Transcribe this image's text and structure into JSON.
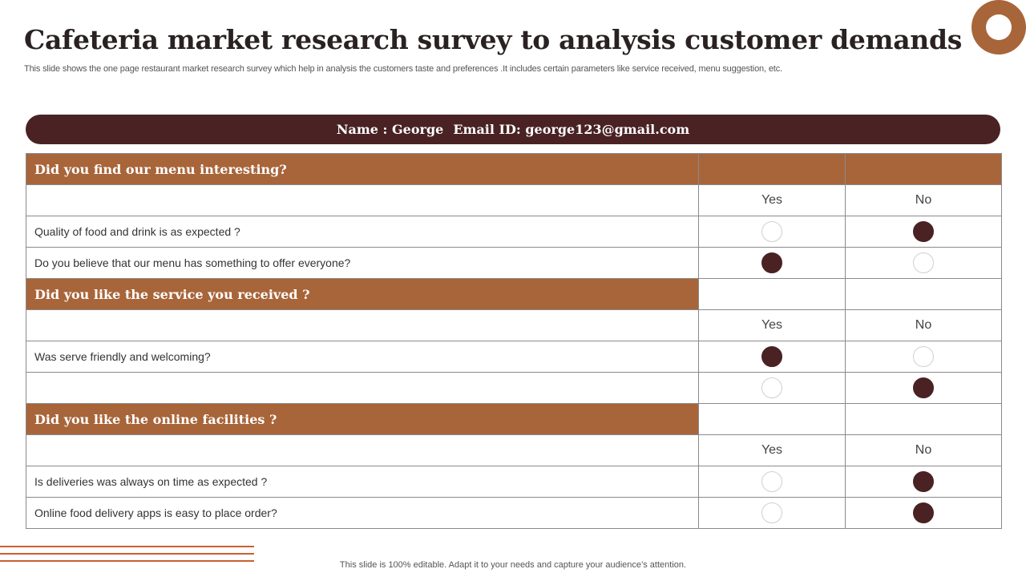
{
  "slide": {
    "title": "Cafeteria market research survey to analysis customer demands",
    "subtitle": "This slide shows the one page restaurant market research survey which help in analysis the customers taste and preferences .It includes certain parameters like service received, menu suggestion, etc.",
    "footer": "This slide is 100% editable. Adapt it to your needs and capture your audience’s attention."
  },
  "respondent": {
    "name_text": "Name : George",
    "email_text": "Email ID: george123@gmail.com"
  },
  "colors": {
    "section_header": "#a8653a",
    "dark_accent": "#4a2224",
    "decor_lines": "#c8602e"
  },
  "sections": [
    {
      "heading": "Did you find our menu interesting?",
      "yes_label": "Yes",
      "no_label": "No",
      "questions": [
        {
          "text": "Quality of food and drink is as expected ?",
          "answer": "No"
        },
        {
          "text": "Do you believe  that our menu has something to offer everyone?",
          "answer": "Yes"
        }
      ]
    },
    {
      "heading": "Did you like the service you received ?",
      "yes_label": "Yes",
      "no_label": "No",
      "questions": [
        {
          "text": "Was serve friendly and welcoming?",
          "answer": "Yes"
        },
        {
          "text": "",
          "answer": "No"
        }
      ]
    },
    {
      "heading": "Did you  like the online facilities ?",
      "yes_label": "Yes",
      "no_label": "No",
      "questions": [
        {
          "text": "Is deliveries was always on time as expected ?",
          "answer": "No"
        },
        {
          "text": "Online food delivery apps is easy to place order?",
          "answer": "No"
        }
      ]
    }
  ]
}
